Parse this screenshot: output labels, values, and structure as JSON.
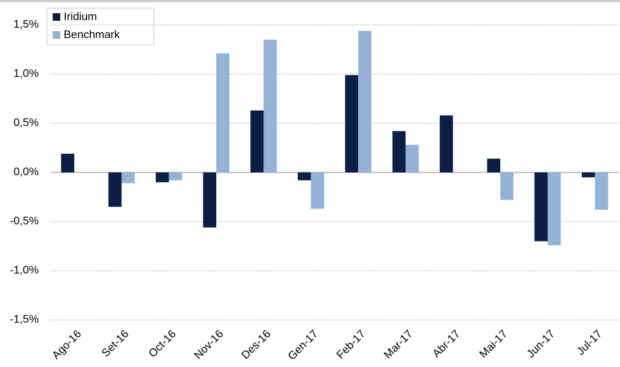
{
  "chart_data": {
    "type": "bar",
    "categories": [
      "Ago-16",
      "Set-16",
      "Oct-16",
      "Nov-16",
      "Des-16",
      "Gen-17",
      "Feb-17",
      "Mar-17",
      "Abr-17",
      "Mai-17",
      "Jun-17",
      "Jul-17"
    ],
    "series": [
      {
        "name": "Iridium",
        "color": "#0b1f45",
        "values": [
          0.19,
          -0.35,
          -0.1,
          -0.56,
          0.63,
          -0.08,
          0.99,
          0.42,
          0.58,
          0.14,
          -0.7,
          -0.05
        ]
      },
      {
        "name": "Benchmark",
        "color": "#95b3d7",
        "values": [
          0,
          -0.11,
          -0.08,
          1.21,
          1.35,
          -0.37,
          1.44,
          0.28,
          0,
          -0.28,
          -0.74,
          -0.38
        ]
      }
    ],
    "ylim": [
      -1.5,
      1.5
    ],
    "yticks": [
      {
        "value": -1.5,
        "label": "-1,5%"
      },
      {
        "value": -1.0,
        "label": "-1,0%"
      },
      {
        "value": -0.5,
        "label": "-0,5%"
      },
      {
        "value": 0,
        "label": "0,0%"
      },
      {
        "value": 0.5,
        "label": "0,5%"
      },
      {
        "value": 1.0,
        "label": "1,0%"
      },
      {
        "value": 1.5,
        "label": "1,5%"
      }
    ],
    "grid": true,
    "legend": "top-left"
  }
}
